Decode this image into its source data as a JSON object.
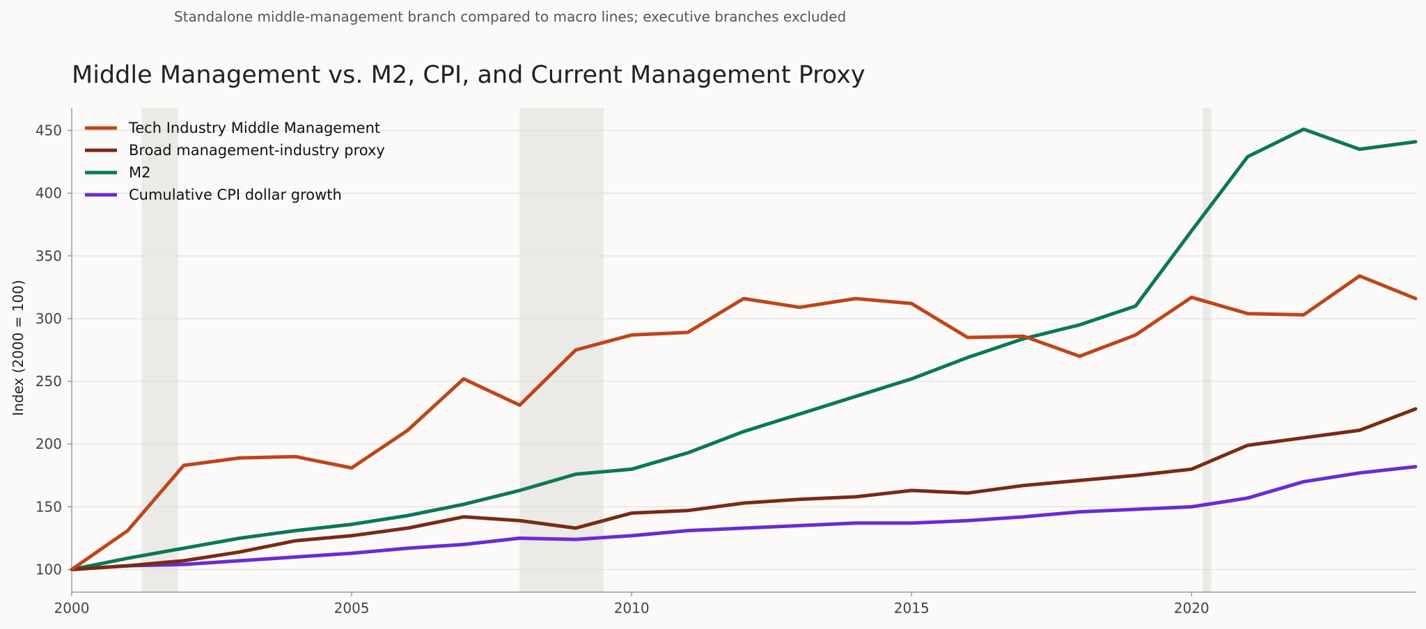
{
  "subtitle": "Standalone middle-management branch compared to macro lines; executive branches excluded",
  "chart_data": {
    "type": "line",
    "title": "Middle Management vs. M2, CPI, and Current Management Proxy",
    "xlabel": "",
    "ylabel": "Index (2000 = 100)",
    "xlim": [
      2000,
      2024
    ],
    "ylim": [
      82,
      468
    ],
    "x_ticks": [
      2000,
      2005,
      2010,
      2015,
      2020
    ],
    "y_ticks": [
      100,
      150,
      200,
      250,
      300,
      350,
      400,
      450
    ],
    "grid": "horizontal",
    "legend_position": "top-left",
    "shaded_periods": [
      {
        "start": 2001.25,
        "end": 2001.9
      },
      {
        "start": 2008.0,
        "end": 2009.5
      },
      {
        "start": 2020.2,
        "end": 2020.35
      }
    ],
    "x": [
      2000,
      2001,
      2002,
      2003,
      2004,
      2005,
      2006,
      2007,
      2008,
      2009,
      2010,
      2011,
      2012,
      2013,
      2014,
      2015,
      2016,
      2017,
      2018,
      2019,
      2020,
      2021,
      2022,
      2023,
      2024
    ],
    "series": [
      {
        "name": "Tech Industry Middle Management",
        "color": "#c0441a",
        "values": [
          100,
          131,
          183,
          189,
          190,
          181,
          211,
          252,
          231,
          275,
          287,
          289,
          316,
          309,
          316,
          312,
          285,
          286,
          270,
          287,
          317,
          304,
          303,
          334,
          316
        ]
      },
      {
        "name": "Broad management-industry proxy",
        "color": "#7a2a14",
        "values": [
          100,
          103,
          107,
          114,
          123,
          127,
          133,
          142,
          139,
          133,
          145,
          147,
          153,
          156,
          158,
          163,
          161,
          167,
          171,
          175,
          180,
          199,
          205,
          211,
          228
        ]
      },
      {
        "name": "M2",
        "color": "#0a7856",
        "values": [
          100,
          109,
          117,
          125,
          131,
          136,
          143,
          152,
          163,
          176,
          180,
          193,
          210,
          224,
          238,
          252,
          269,
          284,
          295,
          310,
          370,
          429,
          451,
          435,
          441
        ]
      },
      {
        "name": "Cumulative CPI dollar growth",
        "color": "#6a2bd6",
        "values": [
          100,
          103,
          104,
          107,
          110,
          113,
          117,
          120,
          125,
          124,
          127,
          131,
          133,
          135,
          137,
          137,
          139,
          142,
          146,
          148,
          150,
          157,
          170,
          177,
          182
        ]
      }
    ]
  }
}
